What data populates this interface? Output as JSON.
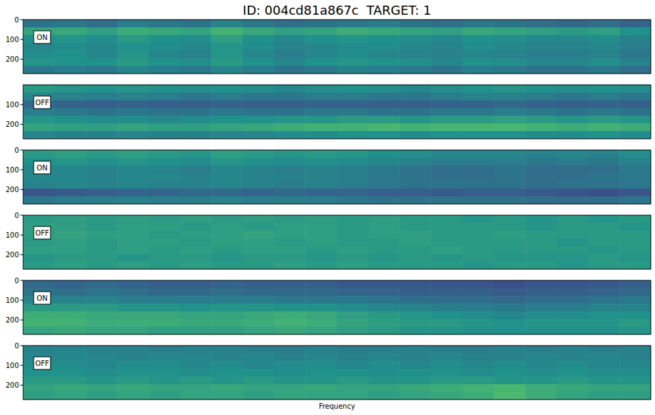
{
  "chart_data": {
    "type": "heatmap",
    "title": "ID: 004cd81a867c  TARGET: 1",
    "x_label": "Frequency",
    "ylim": [
      0,
      273
    ],
    "tick_labels": "y",
    "color_range": [
      0,
      100
    ],
    "panels": [
      {
        "label": "ON",
        "yticks": [
          0,
          100,
          200
        ],
        "cells": [
          [
            38,
            40,
            36,
            42,
            40,
            38,
            44,
            40,
            36,
            38,
            40,
            42,
            38,
            36,
            40,
            38,
            36,
            34,
            36,
            32
          ],
          [
            58,
            60,
            56,
            62,
            60,
            58,
            64,
            60,
            56,
            58,
            62,
            60,
            58,
            56,
            60,
            58,
            56,
            54,
            56,
            50
          ],
          [
            50,
            52,
            48,
            54,
            50,
            48,
            56,
            50,
            46,
            50,
            52,
            50,
            48,
            46,
            50,
            48,
            46,
            46,
            48,
            44
          ],
          [
            46,
            48,
            46,
            50,
            48,
            46,
            52,
            48,
            44,
            46,
            48,
            48,
            46,
            44,
            48,
            46,
            44,
            44,
            46,
            42
          ],
          [
            48,
            50,
            46,
            52,
            46,
            44,
            52,
            46,
            42,
            46,
            48,
            46,
            44,
            44,
            46,
            44,
            42,
            42,
            44,
            40
          ],
          [
            52,
            50,
            50,
            54,
            50,
            48,
            54,
            50,
            46,
            50,
            52,
            50,
            48,
            46,
            50,
            48,
            46,
            46,
            48,
            44
          ],
          [
            40,
            42,
            40,
            46,
            42,
            40,
            46,
            42,
            38,
            40,
            44,
            42,
            40,
            38,
            42,
            40,
            38,
            38,
            40,
            36
          ]
        ]
      },
      {
        "label": "OFF",
        "yticks": [
          100,
          200
        ],
        "cells": [
          [
            54,
            52,
            50,
            52,
            50,
            48,
            50,
            48,
            46,
            48,
            50,
            48,
            46,
            48,
            50,
            52,
            50,
            48,
            50,
            48
          ],
          [
            46,
            44,
            42,
            44,
            42,
            40,
            42,
            40,
            40,
            42,
            42,
            40,
            40,
            42,
            44,
            44,
            42,
            40,
            42,
            40
          ],
          [
            34,
            32,
            30,
            32,
            30,
            30,
            32,
            30,
            30,
            32,
            32,
            30,
            30,
            32,
            32,
            34,
            32,
            30,
            32,
            30
          ],
          [
            42,
            40,
            38,
            40,
            38,
            38,
            40,
            38,
            38,
            40,
            40,
            38,
            38,
            40,
            40,
            42,
            40,
            38,
            40,
            38
          ],
          [
            52,
            50,
            48,
            48,
            46,
            48,
            50,
            50,
            52,
            52,
            54,
            54,
            52,
            54,
            54,
            56,
            54,
            52,
            54,
            52
          ],
          [
            58,
            56,
            56,
            58,
            56,
            56,
            58,
            60,
            62,
            64,
            64,
            66,
            64,
            66,
            66,
            66,
            64,
            62,
            64,
            62
          ],
          [
            46,
            44,
            44,
            46,
            44,
            44,
            46,
            46,
            48,
            48,
            50,
            50,
            48,
            50,
            50,
            50,
            48,
            48,
            50,
            48
          ]
        ]
      },
      {
        "label": "ON",
        "yticks": [
          0,
          100,
          200
        ],
        "cells": [
          [
            54,
            56,
            54,
            56,
            54,
            52,
            56,
            54,
            52,
            54,
            52,
            50,
            48,
            46,
            46,
            46,
            44,
            46,
            44,
            48
          ],
          [
            50,
            52,
            50,
            52,
            50,
            48,
            52,
            50,
            48,
            50,
            48,
            46,
            44,
            42,
            42,
            42,
            40,
            42,
            40,
            44
          ],
          [
            46,
            46,
            44,
            46,
            44,
            42,
            46,
            44,
            42,
            44,
            42,
            40,
            38,
            36,
            36,
            38,
            36,
            36,
            36,
            40
          ],
          [
            46,
            46,
            44,
            46,
            46,
            44,
            46,
            44,
            44,
            44,
            42,
            40,
            38,
            36,
            36,
            38,
            36,
            36,
            38,
            40
          ],
          [
            44,
            46,
            44,
            46,
            44,
            44,
            46,
            44,
            42,
            44,
            42,
            40,
            38,
            38,
            38,
            38,
            36,
            38,
            38,
            40
          ],
          [
            26,
            28,
            30,
            32,
            32,
            34,
            34,
            32,
            34,
            32,
            32,
            30,
            30,
            28,
            30,
            30,
            28,
            26,
            24,
            26
          ],
          [
            40,
            42,
            42,
            44,
            42,
            42,
            44,
            42,
            42,
            42,
            40,
            38,
            38,
            38,
            38,
            38,
            36,
            36,
            36,
            38
          ]
        ]
      },
      {
        "label": "OFF",
        "yticks": [
          0,
          100,
          200
        ],
        "cells": [
          [
            54,
            56,
            54,
            56,
            54,
            56,
            54,
            56,
            54,
            56,
            54,
            56,
            54,
            54,
            52,
            54,
            52,
            54,
            52,
            54
          ],
          [
            56,
            56,
            54,
            56,
            56,
            54,
            56,
            54,
            56,
            56,
            54,
            56,
            54,
            54,
            54,
            54,
            52,
            54,
            54,
            52
          ],
          [
            56,
            58,
            56,
            56,
            54,
            56,
            56,
            58,
            56,
            56,
            54,
            56,
            56,
            54,
            54,
            56,
            54,
            54,
            54,
            54
          ],
          [
            54,
            56,
            54,
            56,
            56,
            54,
            56,
            56,
            54,
            56,
            54,
            54,
            56,
            54,
            54,
            54,
            54,
            52,
            54,
            54
          ],
          [
            56,
            56,
            54,
            56,
            54,
            56,
            54,
            56,
            56,
            54,
            56,
            54,
            54,
            56,
            54,
            54,
            54,
            54,
            52,
            54
          ],
          [
            52,
            54,
            54,
            52,
            54,
            54,
            52,
            54,
            54,
            52,
            54,
            52,
            54,
            52,
            54,
            52,
            52,
            52,
            54,
            52
          ],
          [
            54,
            56,
            54,
            56,
            54,
            56,
            54,
            54,
            56,
            54,
            56,
            54,
            54,
            54,
            52,
            54,
            54,
            52,
            54,
            54
          ]
        ]
      },
      {
        "label": "ON",
        "yticks": [
          0,
          100,
          200
        ],
        "cells": [
          [
            34,
            32,
            34,
            32,
            30,
            30,
            32,
            30,
            30,
            30,
            28,
            28,
            28,
            26,
            26,
            24,
            26,
            26,
            28,
            30
          ],
          [
            38,
            36,
            38,
            36,
            34,
            34,
            36,
            34,
            34,
            34,
            32,
            32,
            30,
            30,
            30,
            28,
            30,
            30,
            32,
            34
          ],
          [
            44,
            44,
            44,
            42,
            42,
            42,
            42,
            42,
            40,
            40,
            40,
            38,
            36,
            36,
            36,
            34,
            36,
            36,
            38,
            40
          ],
          [
            54,
            54,
            54,
            52,
            52,
            50,
            52,
            52,
            50,
            50,
            48,
            46,
            44,
            42,
            42,
            40,
            42,
            42,
            44,
            44
          ],
          [
            62,
            62,
            60,
            60,
            60,
            58,
            58,
            60,
            62,
            60,
            56,
            54,
            52,
            50,
            48,
            46,
            48,
            48,
            50,
            50
          ],
          [
            64,
            64,
            62,
            62,
            62,
            60,
            60,
            62,
            64,
            62,
            58,
            56,
            54,
            54,
            52,
            50,
            52,
            52,
            52,
            54
          ],
          [
            58,
            60,
            58,
            58,
            56,
            56,
            56,
            58,
            60,
            58,
            56,
            54,
            52,
            52,
            50,
            50,
            50,
            50,
            50,
            52
          ]
        ]
      },
      {
        "label": "OFF",
        "yticks": [
          0,
          100,
          200
        ],
        "cells": [
          [
            44,
            46,
            44,
            44,
            42,
            44,
            44,
            42,
            42,
            44,
            42,
            42,
            44,
            42,
            42,
            44,
            42,
            44,
            42,
            44
          ],
          [
            46,
            46,
            46,
            44,
            46,
            46,
            44,
            46,
            44,
            46,
            44,
            46,
            44,
            46,
            44,
            44,
            46,
            44,
            46,
            44
          ],
          [
            48,
            48,
            46,
            48,
            48,
            46,
            48,
            46,
            48,
            48,
            46,
            48,
            46,
            48,
            46,
            48,
            46,
            48,
            46,
            46
          ],
          [
            50,
            50,
            48,
            50,
            50,
            48,
            50,
            50,
            48,
            50,
            50,
            48,
            50,
            50,
            48,
            50,
            48,
            50,
            48,
            48
          ],
          [
            54,
            54,
            52,
            54,
            52,
            54,
            52,
            54,
            52,
            52,
            54,
            52,
            52,
            54,
            54,
            52,
            52,
            54,
            52,
            52
          ],
          [
            58,
            60,
            58,
            60,
            58,
            58,
            60,
            58,
            58,
            60,
            58,
            58,
            60,
            62,
            64,
            66,
            62,
            60,
            58,
            58
          ],
          [
            56,
            58,
            56,
            58,
            56,
            58,
            58,
            56,
            58,
            58,
            58,
            56,
            58,
            60,
            62,
            68,
            62,
            58,
            56,
            56
          ]
        ]
      }
    ]
  }
}
